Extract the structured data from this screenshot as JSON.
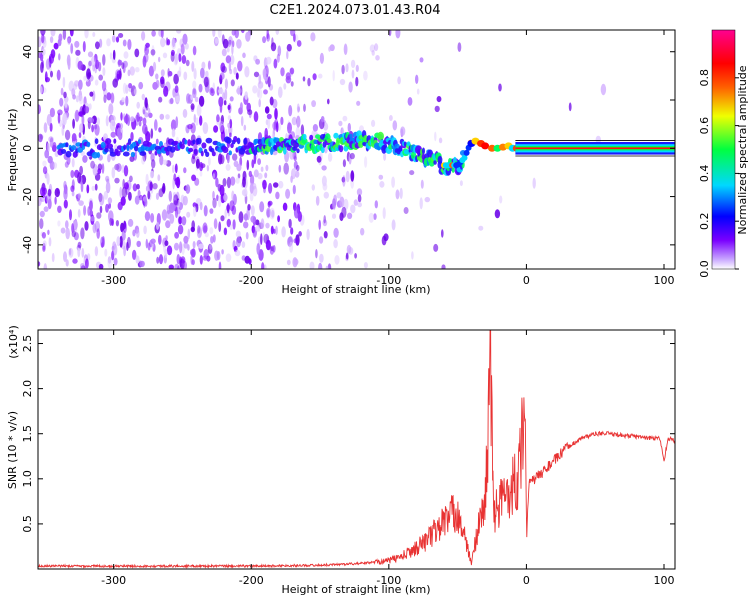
{
  "chart_data": [
    {
      "type": "heatmap",
      "title": "C2E1.2024.073.01.43.R04",
      "xlabel": "Height of straight line (km)",
      "ylabel": "Frequency (Hz)",
      "xlim": [
        -355,
        108
      ],
      "ylim": [
        -50,
        49
      ],
      "x_ticks": [
        -300,
        -200,
        -100,
        0,
        100
      ],
      "y_ticks": [
        -40,
        -20,
        0,
        20,
        40
      ],
      "colorbar": {
        "label": "Normalized spectral amplitude",
        "range": [
          0,
          1
        ],
        "ticks": [
          "0.0",
          "0.2",
          "0.4",
          "0.6",
          "0.8"
        ],
        "colors": [
          "#ffffff",
          "#7a00ff",
          "#0000ff",
          "#00d8ff",
          "#00ff40",
          "#f0ff00",
          "#ff6000",
          "#ff0000",
          "#ff0090"
        ]
      },
      "ridge": {
        "x": [
          -355,
          -300,
          -250,
          -200,
          -150,
          -120,
          -100,
          -80,
          -60,
          -50,
          -45,
          -40,
          -35,
          -30,
          -25,
          -20,
          -15,
          -10,
          0,
          100,
          108
        ],
        "y": [
          0,
          0,
          0,
          1,
          2,
          3,
          2,
          -2,
          -7,
          -7,
          -4,
          3,
          1,
          0,
          0,
          0,
          1,
          0,
          0,
          0,
          0
        ]
      }
    },
    {
      "type": "line",
      "xlabel": "Height of straight line (km)",
      "ylabel": "SNR (10 * v/v)",
      "scale_label": "(x10⁴)",
      "xlim": [
        -355,
        108
      ],
      "ylim": [
        0,
        2.65
      ],
      "x_ticks": [
        -300,
        -200,
        -100,
        0,
        100
      ],
      "y_ticks": [
        "0.5",
        "1.0",
        "1.5",
        "2.0",
        "2.5"
      ],
      "line_color": "#e83232",
      "series": [
        {
          "x": [
            -355,
            -300,
            -200,
            -150,
            -120,
            -100,
            -90,
            -80,
            -70,
            -60,
            -50,
            -45,
            -40,
            -35,
            -30,
            -26,
            -24,
            -20,
            -10,
            -5,
            -1,
            0,
            2,
            10,
            20,
            30,
            40,
            50,
            60,
            70,
            80,
            90,
            97,
            100,
            103,
            108
          ],
          "y": [
            0.02,
            0.02,
            0.02,
            0.03,
            0.05,
            0.08,
            0.12,
            0.2,
            0.3,
            0.45,
            0.55,
            0.3,
            0.05,
            0.4,
            0.6,
            2.0,
            0.5,
            0.6,
            0.8,
            0.9,
            1.8,
            0.3,
            0.95,
            1.05,
            1.2,
            1.35,
            1.45,
            1.5,
            1.5,
            1.48,
            1.47,
            1.45,
            1.45,
            1.2,
            1.45,
            1.42
          ]
        }
      ]
    }
  ]
}
